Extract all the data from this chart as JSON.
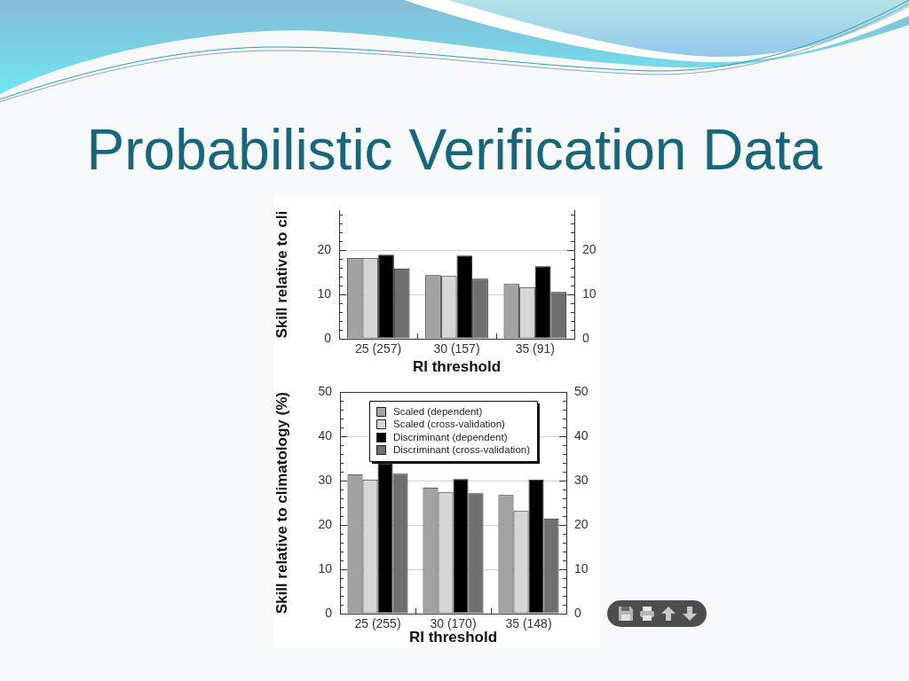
{
  "chart_data": [
    {
      "type": "bar",
      "title": "Probabilistic Verification Data",
      "ylabel": "Skill relative to cli",
      "xlabel": "RI threshold",
      "categories": [
        "25 (257)",
        "30 (157)",
        "35 (91)"
      ],
      "series": [
        {
          "color": "#a3a3a3",
          "values": [
            18.3,
            14.4,
            12.4
          ]
        },
        {
          "color": "#d6d6d6",
          "values": [
            18.3,
            14.2,
            11.7
          ]
        },
        {
          "color": "#000000",
          "values": [
            19.0,
            18.8,
            16.4
          ]
        },
        {
          "color": "#6f6f6f",
          "values": [
            15.9,
            13.6,
            10.6
          ]
        }
      ],
      "ylim": [
        0,
        29
      ],
      "yticks": [
        0,
        {
          "value": 2,
          "label": null
        },
        {
          "value": 4,
          "label": null
        },
        {
          "value": 6,
          "label": null
        },
        {
          "value": 8,
          "label": null
        },
        10,
        {
          "value": 12,
          "label": null
        },
        {
          "value": 14,
          "label": null
        },
        {
          "value": 16,
          "label": null
        },
        {
          "value": 18,
          "label": null
        },
        20,
        {
          "value": 22,
          "label": null
        },
        {
          "value": 24,
          "label": null
        },
        {
          "value": 26,
          "label": null
        },
        {
          "value": 28,
          "label": null
        }
      ],
      "y2lim": [
        0,
        29
      ],
      "y2ticks": [
        0,
        {
          "value": 2,
          "label": null
        },
        {
          "value": 4,
          "label": null
        },
        {
          "value": 6,
          "label": null
        },
        {
          "value": 8,
          "label": null
        },
        10,
        {
          "value": 12,
          "label": null
        },
        {
          "value": 14,
          "label": null
        },
        {
          "value": 16,
          "label": null
        },
        {
          "value": 18,
          "label": null
        },
        20,
        {
          "value": 22,
          "label": null
        },
        {
          "value": 24,
          "label": null
        },
        {
          "value": 26,
          "label": null
        },
        {
          "value": 28,
          "label": null
        }
      ],
      "grid": "y"
    },
    {
      "type": "bar",
      "ylabel": "Skill relative to climatology (%)",
      "xlabel": "RI threshold",
      "categories": [
        "25 (255)",
        "30 (170)",
        "35 (148)"
      ],
      "series": [
        {
          "name": "Scaled (dependent)",
          "color": "#a3a3a3",
          "values": [
            31.5,
            28.5,
            26.8
          ]
        },
        {
          "name": "Scaled (cross-validation)",
          "color": "#d6d6d6",
          "values": [
            30.3,
            27.4,
            23.2
          ]
        },
        {
          "name": "Discriminant (dependent)",
          "color": "#000000",
          "values": [
            33.9,
            30.4,
            30.3
          ]
        },
        {
          "name": "Discriminant (cross-validation)",
          "color": "#6f6f6f",
          "values": [
            31.6,
            27.2,
            21.5
          ]
        }
      ],
      "ylim": [
        0,
        50
      ],
      "yticks": [
        0,
        {
          "value": 2,
          "label": null
        },
        {
          "value": 4,
          "label": null
        },
        {
          "value": 6,
          "label": null
        },
        {
          "value": 8,
          "label": null
        },
        10,
        {
          "value": 12,
          "label": null
        },
        {
          "value": 14,
          "label": null
        },
        {
          "value": 16,
          "label": null
        },
        {
          "value": 18,
          "label": null
        },
        20,
        {
          "value": 22,
          "label": null
        },
        {
          "value": 24,
          "label": null
        },
        {
          "value": 26,
          "label": null
        },
        {
          "value": 28,
          "label": null
        },
        30,
        {
          "value": 32,
          "label": null
        },
        {
          "value": 34,
          "label": null
        },
        {
          "value": 36,
          "label": null
        },
        {
          "value": 38,
          "label": null
        },
        40,
        {
          "value": 42,
          "label": null
        },
        {
          "value": 44,
          "label": null
        },
        {
          "value": 46,
          "label": null
        },
        {
          "value": 48,
          "label": null
        },
        50
      ],
      "y2lim": [
        0,
        50
      ],
      "y2ticks": [
        0,
        {
          "value": 2,
          "label": null
        },
        {
          "value": 4,
          "label": null
        },
        {
          "value": 6,
          "label": null
        },
        {
          "value": 8,
          "label": null
        },
        10,
        {
          "value": 12,
          "label": null
        },
        {
          "value": 14,
          "label": null
        },
        {
          "value": 16,
          "label": null
        },
        {
          "value": 18,
          "label": null
        },
        20,
        {
          "value": 22,
          "label": null
        },
        {
          "value": 24,
          "label": null
        },
        {
          "value": 26,
          "label": null
        },
        {
          "value": 28,
          "label": null
        },
        30,
        {
          "value": 32,
          "label": null
        },
        {
          "value": 34,
          "label": null
        },
        {
          "value": 36,
          "label": null
        },
        {
          "value": 38,
          "label": null
        },
        40,
        {
          "value": 42,
          "label": null
        },
        {
          "value": 44,
          "label": null
        },
        {
          "value": 46,
          "label": null
        },
        {
          "value": 48,
          "label": null
        },
        50
      ],
      "grid": "y",
      "legend": "top"
    }
  ]
}
